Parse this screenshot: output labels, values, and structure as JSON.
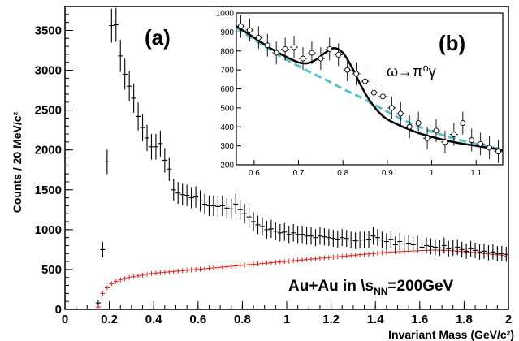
{
  "chart_data": [
    {
      "type": "scatter",
      "panel_label": "(a)",
      "xlabel": "Invariant Mass (GeV/c²)",
      "ylabel": "Counts / 20 MeV/c²",
      "xlim": [
        0,
        2
      ],
      "ylim": [
        0,
        3800
      ],
      "x_ticks": [
        "0",
        "0.2",
        "0.4",
        "0.6",
        "0.8",
        "1",
        "1.2",
        "1.4",
        "1.6",
        "1.8",
        "2"
      ],
      "y_ticks": [
        "0",
        "500",
        "1000",
        "1500",
        "2000",
        "2500",
        "3000",
        "3500"
      ],
      "annotation": "Au+Au in \\ s_NN=200GeV",
      "annotation_parts": {
        "prefix": "Au+Au in \\",
        "sub": "NN",
        "s": "s",
        "suffix": "=200GeV"
      },
      "colors": {
        "total": "#000000",
        "background": "#e02020"
      },
      "series": [
        {
          "x": [
            0.15,
            0.17,
            0.19,
            0.21,
            0.23,
            0.25,
            0.27,
            0.29,
            0.31,
            0.33,
            0.35,
            0.37,
            0.39,
            0.41,
            0.43,
            0.45,
            0.47,
            0.49,
            0.51,
            0.53,
            0.55,
            0.57,
            0.59,
            0.61,
            0.63,
            0.65,
            0.67,
            0.69,
            0.71,
            0.73,
            0.75,
            0.77,
            0.79,
            0.81,
            0.83,
            0.85,
            0.87,
            0.89,
            0.91,
            0.93,
            0.95,
            0.97,
            0.99,
            1.01,
            1.03,
            1.05,
            1.07,
            1.09,
            1.11,
            1.13,
            1.15,
            1.17,
            1.19,
            1.21,
            1.23,
            1.25,
            1.27,
            1.29,
            1.31,
            1.33,
            1.35,
            1.37,
            1.39,
            1.41,
            1.43,
            1.45,
            1.47,
            1.49,
            1.51,
            1.53,
            1.55,
            1.57,
            1.59,
            1.61,
            1.63,
            1.65,
            1.67,
            1.69,
            1.71,
            1.73,
            1.75,
            1.77,
            1.79,
            1.81,
            1.83,
            1.85,
            1.87,
            1.89,
            1.91,
            1.93,
            1.95,
            1.97,
            1.99
          ],
          "y": [
            80,
            750,
            1850,
            3560,
            3570,
            3180,
            2950,
            2800,
            2650,
            2420,
            2280,
            2150,
            2040,
            2040,
            2080,
            1870,
            1760,
            1500,
            1460,
            1440,
            1430,
            1400,
            1410,
            1360,
            1320,
            1300,
            1300,
            1290,
            1300,
            1270,
            1260,
            1320,
            1250,
            1200,
            1160,
            1100,
            1060,
            1040,
            1000,
            1010,
            980,
            960,
            970,
            940,
            960,
            940,
            940,
            920,
            920,
            900,
            920,
            910,
            900,
            890,
            880,
            900,
            890,
            870,
            860,
            870,
            870,
            880,
            920,
            900,
            870,
            850,
            880,
            810,
            850,
            820,
            830,
            810,
            820,
            780,
            800,
            790,
            780,
            770,
            800,
            760,
            770,
            780,
            750,
            730,
            760,
            740,
            720,
            730,
            710,
            720,
            700,
            700,
            690
          ]
        },
        {
          "x": [
            0.15,
            0.17,
            0.19,
            0.21,
            0.23,
            0.25,
            0.27,
            0.29,
            0.31,
            0.33,
            0.35,
            0.37,
            0.39,
            0.41,
            0.43,
            0.45,
            0.47,
            0.49,
            0.51,
            0.53,
            0.55,
            0.57,
            0.59,
            0.61,
            0.63,
            0.65,
            0.67,
            0.69,
            0.71,
            0.73,
            0.75,
            0.77,
            0.79,
            0.81,
            0.83,
            0.85,
            0.87,
            0.89,
            0.91,
            0.93,
            0.95,
            0.97,
            0.99,
            1.01,
            1.03,
            1.05,
            1.07,
            1.09,
            1.11,
            1.13,
            1.15,
            1.17,
            1.19,
            1.21,
            1.23,
            1.25,
            1.27,
            1.29,
            1.31,
            1.33,
            1.35,
            1.37,
            1.39,
            1.41,
            1.43,
            1.45,
            1.47,
            1.49,
            1.51,
            1.53,
            1.55,
            1.57,
            1.59,
            1.61,
            1.63,
            1.65,
            1.67,
            1.69,
            1.71,
            1.73,
            1.75,
            1.77,
            1.79,
            1.81,
            1.83,
            1.85,
            1.87,
            1.89,
            1.91,
            1.93,
            1.95,
            1.97,
            1.99
          ],
          "y": [
            30,
            200,
            270,
            320,
            350,
            370,
            385,
            400,
            410,
            420,
            430,
            440,
            450,
            455,
            460,
            465,
            470,
            475,
            480,
            485,
            490,
            495,
            500,
            505,
            510,
            515,
            520,
            525,
            530,
            535,
            540,
            545,
            550,
            555,
            560,
            565,
            570,
            575,
            580,
            585,
            590,
            595,
            600,
            605,
            610,
            615,
            620,
            625,
            630,
            635,
            640,
            645,
            650,
            655,
            660,
            665,
            670,
            675,
            680,
            685,
            690,
            695,
            700,
            705,
            710,
            715,
            720,
            722,
            725,
            728,
            730,
            733,
            735,
            738,
            740,
            742,
            745,
            742,
            740,
            738,
            735,
            730,
            725,
            720,
            715,
            710,
            705,
            700,
            695,
            690,
            685,
            680,
            670
          ]
        }
      ]
    },
    {
      "type": "scatter",
      "panel_label": "(b)",
      "reaction": "ω→π⁰γ",
      "xlim": [
        0.56,
        1.16
      ],
      "ylim": [
        200,
        1000
      ],
      "x_ticks": [
        "0.6",
        "0.7",
        "0.8",
        "0.9",
        "1",
        "1.1"
      ],
      "y_ticks": [
        "200",
        "300",
        "400",
        "500",
        "600",
        "700",
        "800",
        "900",
        "1000"
      ],
      "colors": {
        "fit": "#000000",
        "background_fit": "#5bc0c8"
      },
      "points": {
        "x": [
          0.57,
          0.59,
          0.61,
          0.63,
          0.65,
          0.67,
          0.69,
          0.71,
          0.73,
          0.75,
          0.77,
          0.79,
          0.81,
          0.83,
          0.85,
          0.87,
          0.89,
          0.91,
          0.93,
          0.95,
          0.97,
          0.99,
          1.01,
          1.03,
          1.05,
          1.07,
          1.09,
          1.11,
          1.13,
          1.15
        ],
        "y": [
          930,
          910,
          870,
          830,
          790,
          810,
          820,
          760,
          790,
          760,
          810,
          780,
          700,
          680,
          640,
          580,
          560,
          500,
          470,
          400,
          420,
          340,
          380,
          320,
          360,
          420,
          330,
          310,
          290,
          270
        ]
      },
      "fit_curve": {
        "x": [
          0.56,
          0.6,
          0.64,
          0.68,
          0.7,
          0.72,
          0.74,
          0.76,
          0.78,
          0.8,
          0.82,
          0.84,
          0.86,
          0.88,
          0.9,
          0.94,
          0.98,
          1.02,
          1.06,
          1.1,
          1.14,
          1.16
        ],
        "y": [
          930,
          870,
          810,
          760,
          740,
          735,
          755,
          790,
          815,
          790,
          715,
          620,
          540,
          480,
          440,
          395,
          360,
          335,
          315,
          300,
          285,
          278
        ]
      },
      "background_curve": {
        "x": [
          0.56,
          0.6,
          0.64,
          0.68,
          0.72,
          0.76,
          0.8,
          0.84,
          0.88,
          0.92,
          0.96,
          1.0,
          1.04,
          1.08,
          1.12,
          1.16
        ],
        "y": [
          920,
          860,
          800,
          745,
          695,
          650,
          600,
          555,
          505,
          455,
          410,
          375,
          345,
          320,
          300,
          280
        ]
      }
    }
  ]
}
